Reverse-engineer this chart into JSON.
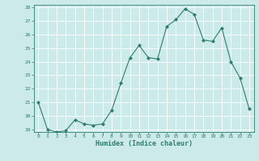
{
  "x": [
    0,
    1,
    2,
    3,
    4,
    5,
    6,
    7,
    8,
    9,
    10,
    11,
    12,
    13,
    14,
    15,
    16,
    17,
    18,
    19,
    20,
    21,
    22,
    23
  ],
  "y": [
    21.0,
    19.0,
    18.8,
    18.9,
    19.7,
    19.4,
    19.3,
    19.4,
    20.4,
    22.4,
    24.3,
    25.2,
    24.3,
    24.2,
    26.6,
    27.1,
    27.9,
    27.5,
    25.6,
    25.5,
    26.5,
    24.0,
    22.8,
    20.5
  ],
  "line_color": "#2e7d6e",
  "marker": "D",
  "marker_size": 2,
  "bg_color": "#cceaea",
  "grid_color": "#ffffff",
  "xlabel": "Humidex (Indice chaleur)",
  "ylim": [
    19,
    28
  ],
  "xlim": [
    -0.5,
    23.5
  ],
  "yticks": [
    19,
    20,
    21,
    22,
    23,
    24,
    25,
    26,
    27,
    28
  ],
  "xticks": [
    0,
    1,
    2,
    3,
    4,
    5,
    6,
    7,
    8,
    9,
    10,
    11,
    12,
    13,
    14,
    15,
    16,
    17,
    18,
    19,
    20,
    21,
    22,
    23
  ]
}
